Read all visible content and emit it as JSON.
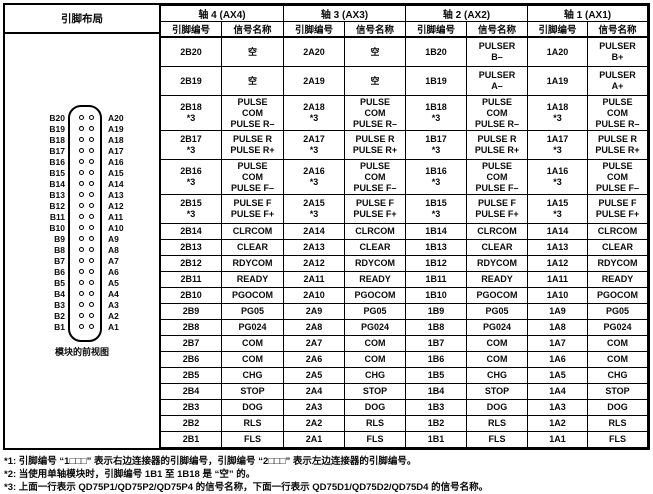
{
  "header": {
    "pin_layout": "引脚布局",
    "axes": [
      "轴 4 (AX4)",
      "轴 3 (AX3)",
      "轴 2 (AX2)",
      "轴 1 (AX1)"
    ],
    "pin_col": "引脚编号",
    "signal_col": "信号名称"
  },
  "rows": [
    {
      "pins": [
        "2B20",
        "2A20",
        "1B20",
        "1A20"
      ],
      "signals": [
        "空",
        "空",
        "PULSER\nB–",
        "PULSER\nB+"
      ]
    },
    {
      "pins": [
        "2B19",
        "2A19",
        "1B19",
        "1A19"
      ],
      "signals": [
        "空",
        "空",
        "PULSER\nA–",
        "PULSER\nA+"
      ]
    },
    {
      "pins": [
        "2B18\n*3",
        "2A18\n*3",
        "1B18\n*3",
        "1A18\n*3"
      ],
      "signals": [
        "PULSE\nCOM\nPULSE R–",
        "PULSE\nCOM\nPULSE R–",
        "PULSE\nCOM\nPULSE R–",
        "PULSE\nCOM\nPULSE R–"
      ]
    },
    {
      "pins": [
        "2B17\n*3",
        "2A17\n*3",
        "1B17\n*3",
        "1A17\n*3"
      ],
      "signals": [
        "PULSE R\nPULSE R+",
        "PULSE R\nPULSE R+",
        "PULSE R\nPULSE R+",
        "PULSE R\nPULSE R+"
      ]
    },
    {
      "pins": [
        "2B16\n*3",
        "2A16\n*3",
        "1B16\n*3",
        "1A16\n*3"
      ],
      "signals": [
        "PULSE\nCOM\nPULSE F–",
        "PULSE\nCOM\nPULSE F–",
        "PULSE\nCOM\nPULSE F–",
        "PULSE\nCOM\nPULSE F–"
      ]
    },
    {
      "pins": [
        "2B15\n*3",
        "2A15\n*3",
        "1B15\n*3",
        "1A15\n*3"
      ],
      "signals": [
        "PULSE F\nPULSE F+",
        "PULSE F\nPULSE F+",
        "PULSE F\nPULSE F+",
        "PULSE F\nPULSE F+"
      ]
    },
    {
      "pins": [
        "2B14",
        "2A14",
        "1B14",
        "1A14"
      ],
      "signals": [
        "CLRCOM",
        "CLRCOM",
        "CLRCOM",
        "CLRCOM"
      ]
    },
    {
      "pins": [
        "2B13",
        "2A13",
        "1B13",
        "1A13"
      ],
      "signals": [
        "CLEAR",
        "CLEAR",
        "CLEAR",
        "CLEAR"
      ]
    },
    {
      "pins": [
        "2B12",
        "2A12",
        "1B12",
        "1A12"
      ],
      "signals": [
        "RDYCOM",
        "RDYCOM",
        "RDYCOM",
        "RDYCOM"
      ]
    },
    {
      "pins": [
        "2B11",
        "2A11",
        "1B11",
        "1A11"
      ],
      "signals": [
        "READY",
        "READY",
        "READY",
        "READY"
      ]
    },
    {
      "pins": [
        "2B10",
        "2A10",
        "1B10",
        "1A10"
      ],
      "signals": [
        "PGOCOM",
        "PGOCOM",
        "PGOCOM",
        "PGOCOM"
      ]
    },
    {
      "pins": [
        "2B9",
        "2A9",
        "1B9",
        "1A9"
      ],
      "signals": [
        "PG05",
        "PG05",
        "PG05",
        "PG05"
      ]
    },
    {
      "pins": [
        "2B8",
        "2A8",
        "1B8",
        "1A8"
      ],
      "signals": [
        "PG024",
        "PG024",
        "PG024",
        "PG024"
      ]
    },
    {
      "pins": [
        "2B7",
        "2A7",
        "1B7",
        "1A7"
      ],
      "signals": [
        "COM",
        "COM",
        "COM",
        "COM"
      ]
    },
    {
      "pins": [
        "2B6",
        "2A6",
        "1B6",
        "1A6"
      ],
      "signals": [
        "COM",
        "COM",
        "COM",
        "COM"
      ]
    },
    {
      "pins": [
        "2B5",
        "2A5",
        "1B5",
        "1A5"
      ],
      "signals": [
        "CHG",
        "CHG",
        "CHG",
        "CHG"
      ]
    },
    {
      "pins": [
        "2B4",
        "2A4",
        "1B4",
        "1A4"
      ],
      "signals": [
        "STOP",
        "STOP",
        "STOP",
        "STOP"
      ]
    },
    {
      "pins": [
        "2B3",
        "2A3",
        "1B3",
        "1A3"
      ],
      "signals": [
        "DOG",
        "DOG",
        "DOG",
        "DOG"
      ]
    },
    {
      "pins": [
        "2B2",
        "2A2",
        "1B2",
        "1A2"
      ],
      "signals": [
        "RLS",
        "RLS",
        "RLS",
        "RLS"
      ]
    },
    {
      "pins": [
        "2B1",
        "2A1",
        "1B1",
        "1A1"
      ],
      "signals": [
        "FLS",
        "FLS",
        "FLS",
        "FLS"
      ]
    }
  ],
  "diagram": {
    "left_pins": [
      "B20",
      "B19",
      "B18",
      "B17",
      "B16",
      "B15",
      "B14",
      "B13",
      "B12",
      "B11",
      "B10",
      "B9",
      "B8",
      "B7",
      "B6",
      "B5",
      "B4",
      "B3",
      "B2",
      "B1"
    ],
    "right_pins": [
      "A20",
      "A19",
      "A18",
      "A17",
      "A16",
      "A15",
      "A14",
      "A13",
      "A12",
      "A11",
      "A10",
      "A9",
      "A8",
      "A7",
      "A6",
      "A5",
      "A4",
      "A3",
      "A2",
      "A1"
    ],
    "caption": "模块的前视图"
  },
  "footnotes": [
    "*1: 引脚编号 “1□□□” 表示右边连接器的引脚编号，引脚编号 “2□□□” 表示左边连接器的引脚编号。",
    "*2: 当使用单轴模块时，引脚编号 1B1 至 1B18 是 “空” 的。",
    "*3: 上面一行表示 QD75P1/QD75P2/QD75P4 的信号名称，下面一行表示 QD75D1/QD75D2/QD75D4 的信号名称。"
  ]
}
